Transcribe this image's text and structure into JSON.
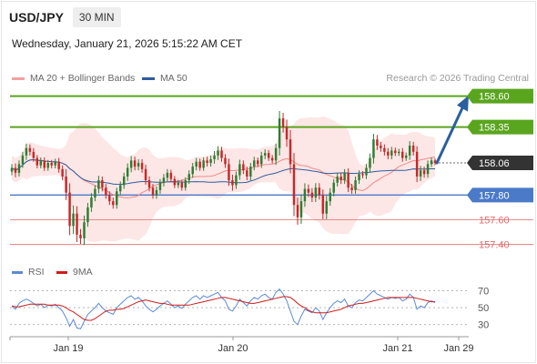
{
  "header": {
    "symbol": "USD/JPY",
    "timeframe": "30 MIN",
    "datetime": "Wednesday, January 21, 2026 5:15:22 AM CET",
    "credit": "Research © 2026 Trading Central"
  },
  "colors": {
    "bollinger": "#f08a8a",
    "ma50": "#2c5c9c",
    "resistance": "#5aa51e",
    "support": "#4a7ac8",
    "minor": "#e26a6a",
    "current": "#333333",
    "candle_up": "#2e7d32",
    "candle_down": "#c62828",
    "rsi": "#5b8bd6",
    "rsi_ma": "#cc1c1c",
    "arrow": "#2a5f9e"
  },
  "chart_data": [
    {
      "type": "candlestick",
      "legend": [
        "MA 20 + Bollinger Bands",
        "MA 50"
      ],
      "x_ticks": [
        "Jan 19",
        "Jan 20",
        "Jan 21",
        "Jan 29"
      ],
      "ylim": [
        157.28,
        158.73
      ],
      "levels": [
        {
          "value": 158.6,
          "label": "158.60",
          "kind": "resistance"
        },
        {
          "value": 158.35,
          "label": "158.35",
          "kind": "resistance"
        },
        {
          "value": 158.06,
          "label": "158.06",
          "kind": "current"
        },
        {
          "value": 157.8,
          "label": "157.80",
          "kind": "support"
        },
        {
          "value": 157.6,
          "label": "157.60",
          "kind": "minor"
        },
        {
          "value": 157.4,
          "label": "157.40",
          "kind": "minor"
        }
      ],
      "close": [
        158.02,
        157.98,
        158.05,
        158.12,
        158.18,
        158.15,
        158.1,
        158.04,
        158.08,
        158.02,
        158.06,
        158.04,
        158.07,
        158.01,
        157.95,
        157.82,
        157.55,
        157.65,
        157.48,
        157.45,
        157.58,
        157.7,
        157.78,
        157.85,
        157.92,
        157.86,
        157.8,
        157.75,
        157.72,
        157.83,
        157.88,
        157.95,
        158.02,
        158.08,
        158.03,
        158.06,
        158.01,
        157.92,
        157.86,
        157.8,
        157.84,
        157.9,
        157.94,
        157.98,
        157.93,
        157.88,
        157.9,
        157.86,
        157.92,
        157.97,
        158.03,
        158.07,
        158.02,
        158.08,
        158.06,
        158.09,
        158.12,
        158.16,
        158.1,
        158.05,
        157.92,
        157.88,
        157.96,
        158.05,
        158.0,
        157.95,
        158.03,
        158.08,
        158.05,
        158.12,
        158.14,
        158.1,
        158.08,
        158.18,
        158.42,
        158.35,
        158.25,
        158.05,
        157.72,
        157.62,
        157.75,
        157.85,
        157.82,
        157.78,
        157.86,
        157.8,
        157.65,
        157.75,
        157.82,
        157.9,
        157.95,
        157.92,
        157.98,
        157.86,
        157.84,
        157.92,
        157.97,
        157.96,
        158.02,
        158.1,
        158.25,
        158.2,
        158.18,
        158.15,
        158.12,
        158.16,
        158.14,
        158.15,
        158.1,
        158.12,
        158.2,
        158.15,
        157.95,
        158.0,
        157.97,
        158.05,
        158.08,
        158.06
      ],
      "range": [
        0.1,
        0.12,
        0.1,
        0.1,
        0.12,
        0.1,
        0.1,
        0.08,
        0.08,
        0.08,
        0.08,
        0.08,
        0.08,
        0.1,
        0.1,
        0.2,
        0.25,
        0.22,
        0.2,
        0.15,
        0.18,
        0.12,
        0.12,
        0.1,
        0.12,
        0.1,
        0.1,
        0.1,
        0.1,
        0.1,
        0.1,
        0.1,
        0.12,
        0.12,
        0.1,
        0.1,
        0.1,
        0.12,
        0.1,
        0.1,
        0.1,
        0.1,
        0.1,
        0.1,
        0.08,
        0.08,
        0.08,
        0.08,
        0.08,
        0.1,
        0.1,
        0.1,
        0.08,
        0.08,
        0.1,
        0.1,
        0.12,
        0.12,
        0.1,
        0.1,
        0.15,
        0.15,
        0.1,
        0.12,
        0.1,
        0.1,
        0.1,
        0.1,
        0.08,
        0.1,
        0.1,
        0.08,
        0.08,
        0.12,
        0.2,
        0.15,
        0.2,
        0.25,
        0.3,
        0.2,
        0.18,
        0.15,
        0.12,
        0.12,
        0.12,
        0.12,
        0.15,
        0.15,
        0.12,
        0.1,
        0.1,
        0.1,
        0.1,
        0.12,
        0.1,
        0.1,
        0.1,
        0.08,
        0.1,
        0.12,
        0.15,
        0.12,
        0.1,
        0.1,
        0.1,
        0.1,
        0.08,
        0.08,
        0.1,
        0.08,
        0.12,
        0.1,
        0.15,
        0.12,
        0.1,
        0.1,
        0.08,
        0.06
      ]
    },
    {
      "type": "line",
      "legend": [
        "RSI",
        "9MA"
      ],
      "y_ticks": [
        70,
        50,
        30
      ],
      "ylim": [
        20,
        78
      ],
      "rsi": [
        52,
        48,
        55,
        58,
        60,
        58,
        55,
        52,
        54,
        50,
        53,
        52,
        54,
        50,
        46,
        38,
        28,
        36,
        26,
        25,
        34,
        42,
        46,
        50,
        55,
        50,
        46,
        44,
        42,
        50,
        54,
        58,
        62,
        64,
        60,
        62,
        58,
        52,
        48,
        45,
        48,
        52,
        55,
        58,
        54,
        50,
        52,
        49,
        54,
        58,
        62,
        64,
        60,
        64,
        62,
        64,
        66,
        68,
        62,
        58,
        48,
        46,
        52,
        60,
        56,
        52,
        58,
        62,
        60,
        64,
        66,
        62,
        60,
        68,
        72,
        66,
        58,
        46,
        34,
        30,
        40,
        48,
        46,
        44,
        50,
        46,
        36,
        44,
        50,
        55,
        58,
        56,
        60,
        52,
        50,
        56,
        59,
        58,
        62,
        66,
        70,
        66,
        64,
        62,
        60,
        62,
        61,
        62,
        58,
        60,
        66,
        62,
        48,
        52,
        50,
        56,
        58,
        56
      ],
      "rsi_ma": [
        52,
        51,
        51,
        52,
        53,
        54,
        54,
        54,
        54,
        54,
        53,
        53,
        53,
        53,
        52,
        50,
        47,
        45,
        42,
        39,
        36,
        35,
        35,
        37,
        40,
        43,
        46,
        47,
        47,
        48,
        48,
        49,
        51,
        53,
        55,
        57,
        58,
        59,
        58,
        57,
        56,
        55,
        55,
        54,
        53,
        53,
        53,
        53,
        53,
        53,
        54,
        55,
        56,
        57,
        58,
        59,
        60,
        61,
        62,
        62,
        61,
        60,
        59,
        58,
        57,
        56,
        55,
        55,
        56,
        57,
        58,
        59,
        60,
        61,
        62,
        63,
        63,
        62,
        59,
        55,
        52,
        50,
        47,
        45,
        44,
        44,
        44,
        44,
        45,
        46,
        47,
        48,
        50,
        52,
        53,
        54,
        55,
        55,
        56,
        57,
        58,
        59,
        60,
        61,
        62,
        62,
        62,
        62,
        62,
        62,
        62,
        62,
        61,
        60,
        59,
        58,
        57,
        57
      ]
    }
  ]
}
